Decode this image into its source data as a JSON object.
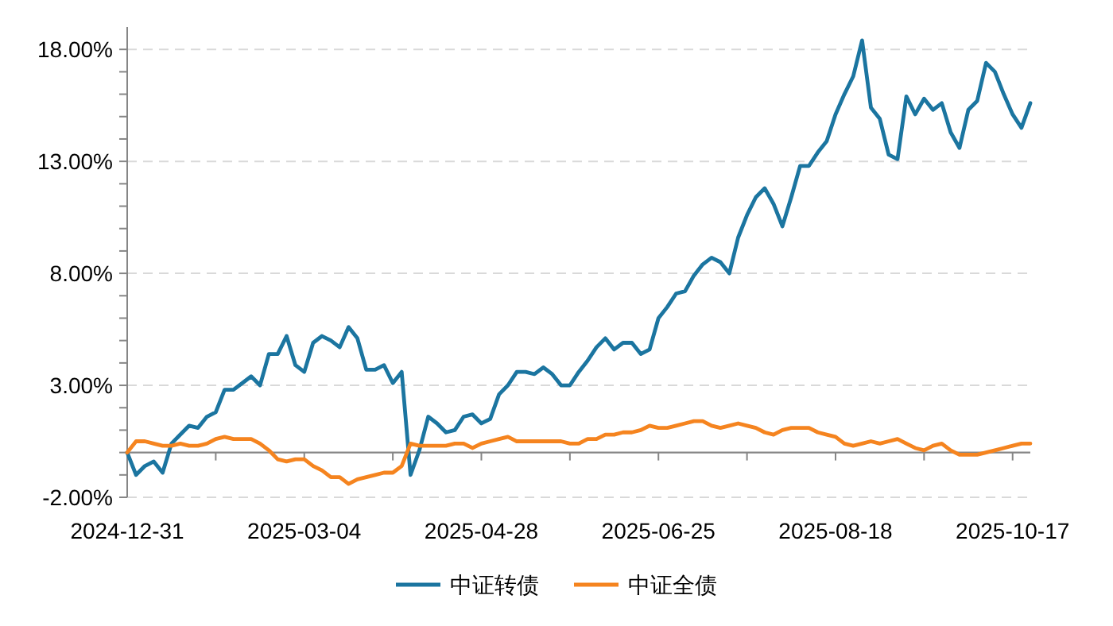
{
  "chart_data": {
    "type": "line",
    "legend": "bottom",
    "grid": "y",
    "marker": "none",
    "line_style": "solid",
    "ylim": [
      -2,
      19
    ],
    "yticks": [
      {
        "value": -2,
        "label": "-2.00%"
      },
      {
        "value": -1,
        "label": null
      },
      {
        "value": 0,
        "label": null
      },
      {
        "value": 1,
        "label": null
      },
      {
        "value": 2,
        "label": null
      },
      {
        "value": 3,
        "label": "3.00%"
      },
      {
        "value": 4,
        "label": null
      },
      {
        "value": 5,
        "label": null
      },
      {
        "value": 6,
        "label": null
      },
      {
        "value": 7,
        "label": null
      },
      {
        "value": 8,
        "label": "8.00%"
      },
      {
        "value": 9,
        "label": null
      },
      {
        "value": 10,
        "label": null
      },
      {
        "value": 11,
        "label": null
      },
      {
        "value": 12,
        "label": null
      },
      {
        "value": 13,
        "label": "13.00%"
      },
      {
        "value": 14,
        "label": null
      },
      {
        "value": 15,
        "label": null
      },
      {
        "value": 16,
        "label": null
      },
      {
        "value": 17,
        "label": null
      },
      {
        "value": 18,
        "label": "18.00%"
      }
    ],
    "categories": [
      "2024-12-31",
      null,
      null,
      null,
      null,
      null,
      null,
      null,
      null,
      null,
      null,
      null,
      null,
      null,
      null,
      null,
      null,
      null,
      null,
      null,
      "2025-03-04",
      null,
      null,
      null,
      null,
      null,
      null,
      null,
      null,
      null,
      null,
      null,
      null,
      null,
      null,
      null,
      null,
      null,
      null,
      null,
      "2025-04-28",
      null,
      null,
      null,
      null,
      null,
      null,
      null,
      null,
      null,
      null,
      null,
      null,
      null,
      null,
      null,
      null,
      null,
      null,
      null,
      "2025-06-25",
      null,
      null,
      null,
      null,
      null,
      null,
      null,
      null,
      null,
      null,
      null,
      null,
      null,
      null,
      null,
      null,
      null,
      null,
      null,
      "2025-08-18",
      null,
      null,
      null,
      null,
      null,
      null,
      null,
      null,
      null,
      null,
      null,
      null,
      null,
      null,
      null,
      null,
      null,
      null,
      null,
      "2025-10-17",
      null,
      null
    ],
    "series": [
      {
        "name": "中证转债",
        "color": "#1b75a0",
        "values": [
          0,
          -1.0,
          -0.6,
          -0.4,
          -0.9,
          0.4,
          0.8,
          1.2,
          1.1,
          1.6,
          1.8,
          2.8,
          2.8,
          3.1,
          3.4,
          3.0,
          4.4,
          4.4,
          5.2,
          3.9,
          3.6,
          4.9,
          5.2,
          5.0,
          4.7,
          5.6,
          5.1,
          3.7,
          3.7,
          3.9,
          3.1,
          3.6,
          -1.0,
          0.1,
          1.6,
          1.3,
          0.9,
          1.0,
          1.6,
          1.7,
          1.3,
          1.5,
          2.6,
          3.0,
          3.6,
          3.6,
          3.5,
          3.8,
          3.5,
          3.0,
          3.0,
          3.6,
          4.1,
          4.7,
          5.1,
          4.6,
          4.9,
          4.9,
          4.4,
          4.6,
          6.0,
          6.5,
          7.1,
          7.2,
          7.9,
          8.4,
          8.7,
          8.5,
          8.0,
          9.6,
          10.6,
          11.4,
          11.8,
          11.1,
          10.1,
          11.4,
          12.8,
          12.8,
          13.4,
          13.9,
          15.1,
          16.0,
          16.8,
          18.4,
          15.4,
          14.9,
          13.3,
          13.1,
          15.9,
          15.1,
          15.8,
          15.3,
          15.6,
          14.3,
          13.6,
          15.3,
          15.7,
          17.4,
          17.0,
          16.0,
          15.1,
          14.5,
          15.6
        ]
      },
      {
        "name": "中证全债",
        "color": "#f5841f",
        "values": [
          0,
          0.5,
          0.5,
          0.4,
          0.3,
          0.3,
          0.4,
          0.3,
          0.3,
          0.4,
          0.6,
          0.7,
          0.6,
          0.6,
          0.6,
          0.4,
          0.1,
          -0.3,
          -0.4,
          -0.3,
          -0.3,
          -0.6,
          -0.8,
          -1.1,
          -1.1,
          -1.4,
          -1.2,
          -1.1,
          -1.0,
          -0.9,
          -0.9,
          -0.6,
          0.4,
          0.3,
          0.3,
          0.3,
          0.3,
          0.4,
          0.4,
          0.2,
          0.4,
          0.5,
          0.6,
          0.7,
          0.5,
          0.5,
          0.5,
          0.5,
          0.5,
          0.5,
          0.4,
          0.4,
          0.6,
          0.6,
          0.8,
          0.8,
          0.9,
          0.9,
          1.0,
          1.2,
          1.1,
          1.1,
          1.2,
          1.3,
          1.4,
          1.4,
          1.2,
          1.1,
          1.2,
          1.3,
          1.2,
          1.1,
          0.9,
          0.8,
          1.0,
          1.1,
          1.1,
          1.1,
          0.9,
          0.8,
          0.7,
          0.4,
          0.3,
          0.4,
          0.5,
          0.4,
          0.5,
          0.6,
          0.4,
          0.2,
          0.1,
          0.3,
          0.4,
          0.1,
          -0.1,
          -0.1,
          -0.1,
          0.0,
          0.1,
          0.2,
          0.3,
          0.4,
          0.4
        ]
      }
    ]
  }
}
